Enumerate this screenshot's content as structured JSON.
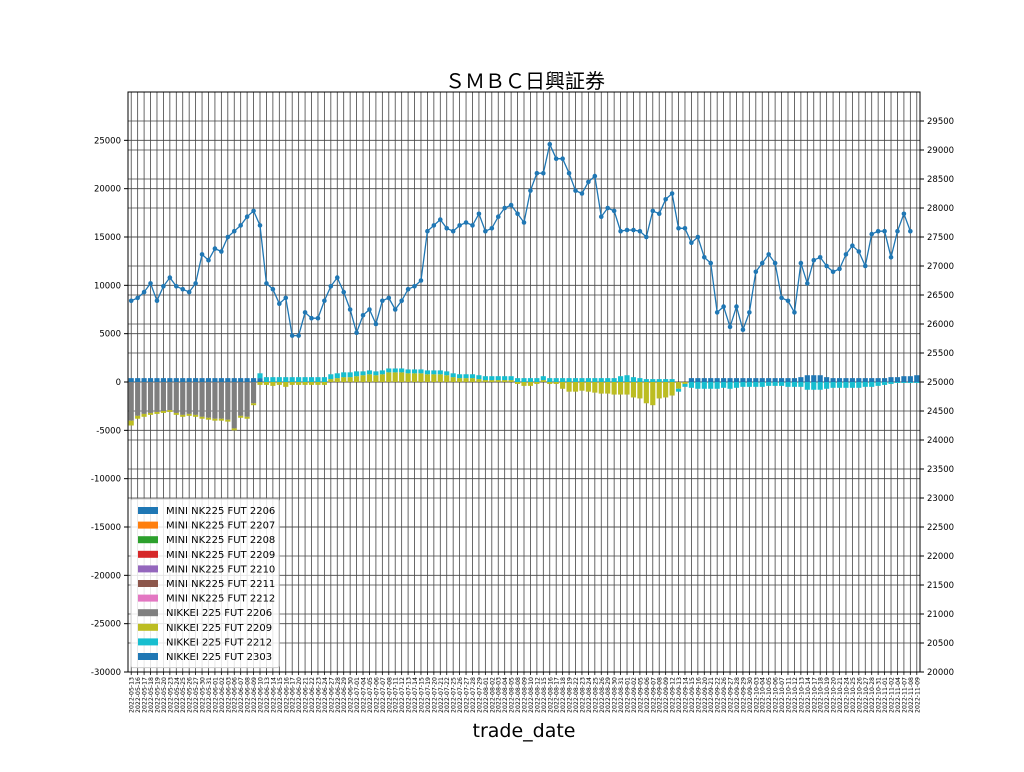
{
  "chart_data": {
    "type": "bar",
    "title": "ＳＭＢＣ日興証券",
    "xlabel": "trade_date",
    "ylabel": "",
    "ylim": [
      -30000,
      30000
    ],
    "y2lim": [
      20000,
      30000
    ],
    "yticks": [
      25000,
      20000,
      15000,
      10000,
      5000,
      0,
      -5000,
      -10000,
      -15000,
      -20000,
      -25000,
      -30000
    ],
    "y2ticks": [
      29500,
      29000,
      28500,
      28000,
      27500,
      27000,
      26500,
      26000,
      25500,
      25000,
      24500,
      24000,
      23500,
      23000,
      22500,
      22000,
      21500,
      21000,
      20500,
      20000
    ],
    "grid": true,
    "legend_placement": "lower-left",
    "x_tick_labels": [
      "2022-05-13",
      "2022-05-16",
      "2022-05-17",
      "2022-05-18",
      "2022-05-19",
      "2022-05-20",
      "2022-05-23",
      "2022-05-24",
      "2022-05-25",
      "2022-05-26",
      "2022-05-27",
      "2022-05-30",
      "2022-05-31",
      "2022-06-01",
      "2022-06-02",
      "2022-06-03",
      "2022-06-06",
      "2022-06-07",
      "2022-06-08",
      "2022-06-09",
      "2022-06-10",
      "2022-06-13",
      "2022-06-14",
      "2022-06-15",
      "2022-06-16",
      "2022-06-17",
      "2022-06-20",
      "2022-06-21",
      "2022-06-22",
      "2022-06-23",
      "2022-06-24",
      "2022-06-27",
      "2022-06-28",
      "2022-06-29",
      "2022-06-30",
      "2022-07-01",
      "2022-07-04",
      "2022-07-05",
      "2022-07-06",
      "2022-07-07",
      "2022-07-08",
      "2022-07-11",
      "2022-07-12",
      "2022-07-13",
      "2022-07-14",
      "2022-07-15",
      "2022-07-19",
      "2022-07-20",
      "2022-07-21",
      "2022-07-22",
      "2022-07-25",
      "2022-07-26",
      "2022-07-27",
      "2022-07-28",
      "2022-07-29",
      "2022-08-01",
      "2022-08-02",
      "2022-08-03",
      "2022-08-04",
      "2022-08-05",
      "2022-08-08",
      "2022-08-09",
      "2022-08-10",
      "2022-08-12",
      "2022-08-15",
      "2022-08-16",
      "2022-08-17",
      "2022-08-18",
      "2022-08-19",
      "2022-08-22",
      "2022-08-23",
      "2022-08-24",
      "2022-08-25",
      "2022-08-26",
      "2022-08-29",
      "2022-08-30",
      "2022-08-31",
      "2022-09-01",
      "2022-09-02",
      "2022-09-05",
      "2022-09-06",
      "2022-09-07",
      "2022-09-08",
      "2022-09-09",
      "2022-09-12",
      "2022-09-13",
      "2022-09-14",
      "2022-09-15",
      "2022-09-16",
      "2022-09-20",
      "2022-09-21",
      "2022-09-22",
      "2022-09-26",
      "2022-09-27",
      "2022-09-28",
      "2022-09-29",
      "2022-09-30",
      "2022-10-03",
      "2022-10-04",
      "2022-10-05",
      "2022-10-06",
      "2022-10-07",
      "2022-10-11",
      "2022-10-12",
      "2022-10-13",
      "2022-10-14",
      "2022-10-17",
      "2022-10-18",
      "2022-10-19",
      "2022-10-20",
      "2022-10-21",
      "2022-10-24",
      "2022-10-25",
      "2022-10-26",
      "2022-10-27",
      "2022-10-28",
      "2022-10-31",
      "2022-11-01",
      "2022-11-02",
      "2022-11-04",
      "2022-11-07",
      "2022-11-08",
      "2022-11-09"
    ],
    "series": [
      {
        "name": "MINI NK225 FUT 2206",
        "color": "#1f77b4"
      },
      {
        "name": "MINI NK225 FUT 2207",
        "color": "#ff7f0e"
      },
      {
        "name": "MINI NK225 FUT 2208",
        "color": "#2ca02c"
      },
      {
        "name": "MINI NK225 FUT 2209",
        "color": "#d62728"
      },
      {
        "name": "MINI NK225 FUT 2210",
        "color": "#9467bd"
      },
      {
        "name": "MINI NK225 FUT 2211",
        "color": "#8c564b"
      },
      {
        "name": "MINI NK225 FUT 2212",
        "color": "#e377c2"
      },
      {
        "name": "NIKKEI 225 FUT 2206",
        "color": "#7f7f7f"
      },
      {
        "name": "NIKKEI 225 FUT 2209",
        "color": "#bcbd22"
      },
      {
        "name": "NIKKEI 225 FUT 2212",
        "color": "#17becf"
      },
      {
        "name": "NIKKEI 225 FUT 2303",
        "color": "#1f77b4"
      }
    ],
    "bar_stacks": [
      {
        "series": "MINI NK225 FUT 2206",
        "values": [
          400,
          400,
          400,
          400,
          400,
          400,
          400,
          400,
          400,
          400,
          400,
          400,
          400,
          400,
          400,
          400,
          400,
          400,
          400,
          400,
          400,
          0,
          0,
          0,
          0,
          0,
          0,
          0,
          0,
          0,
          0,
          0,
          0,
          0,
          0,
          0,
          0,
          0,
          0,
          0,
          0,
          0,
          0,
          0,
          0,
          0,
          0,
          0,
          0,
          0,
          0,
          0,
          0,
          0,
          0,
          0,
          0,
          0,
          0,
          0,
          0,
          0,
          0,
          0,
          0,
          0,
          0,
          0,
          0,
          0,
          0,
          0,
          0,
          0,
          0,
          0,
          0,
          0,
          0,
          0,
          0,
          0,
          0,
          0,
          0,
          0,
          0,
          0,
          0,
          0,
          0,
          0,
          0,
          0,
          0,
          0,
          0,
          0,
          0,
          0,
          0,
          0,
          0,
          0,
          0,
          0,
          0,
          0,
          0,
          0,
          0,
          0,
          0,
          0,
          0,
          0,
          0,
          0,
          0,
          0,
          0
        ]
      },
      {
        "series": "NIKKEI 225 FUT 2206",
        "values": [
          -4000,
          -3500,
          -3300,
          -3200,
          -3100,
          -3000,
          -2900,
          -3200,
          -3400,
          -3300,
          -3400,
          -3600,
          -3700,
          -3800,
          -3800,
          -3900,
          -4800,
          -3500,
          -3600,
          -2200,
          0,
          0,
          0,
          0,
          0,
          0,
          0,
          0,
          0,
          0,
          0,
          0,
          0,
          0,
          0,
          0,
          0,
          0,
          0,
          0,
          0,
          0,
          0,
          0,
          0,
          0,
          0,
          0,
          0,
          0,
          0,
          0,
          0,
          0,
          0,
          0,
          0,
          0,
          0,
          0,
          0,
          0,
          0,
          0,
          0,
          0,
          0,
          0,
          0,
          0,
          0,
          0,
          0,
          0,
          0,
          0,
          0,
          0,
          0,
          0,
          0,
          0,
          0,
          0,
          0,
          0,
          0,
          0,
          0,
          0,
          0,
          0,
          0,
          0,
          0,
          0,
          0,
          0,
          0,
          0,
          0,
          0,
          0,
          0,
          0,
          0,
          0,
          0,
          0,
          0,
          0,
          0,
          0,
          0,
          0,
          0,
          0,
          0,
          0,
          0,
          0,
          0
        ]
      },
      {
        "series": "NIKKEI 225 FUT 2209",
        "values": [
          -500,
          -300,
          -300,
          -200,
          -200,
          -200,
          -200,
          -200,
          -200,
          -200,
          -200,
          -200,
          -200,
          -200,
          -200,
          -200,
          -200,
          -200,
          -200,
          -200,
          -300,
          -300,
          -400,
          -300,
          -500,
          -300,
          -300,
          -300,
          -300,
          -300,
          -300,
          300,
          400,
          500,
          500,
          600,
          700,
          800,
          700,
          800,
          1000,
          1000,
          1000,
          900,
          900,
          900,
          800,
          800,
          800,
          700,
          500,
          400,
          400,
          400,
          300,
          200,
          200,
          200,
          200,
          200,
          -200,
          -400,
          -400,
          -200,
          200,
          -200,
          -200,
          -700,
          -1000,
          -1000,
          -900,
          -1000,
          -1100,
          -1200,
          -1200,
          -1300,
          -1300,
          -1300,
          -1600,
          -1700,
          -2200,
          -2400,
          -1700,
          -1600,
          -1400,
          -700,
          -200,
          0,
          0,
          0,
          0,
          0,
          0,
          0,
          0,
          0,
          0,
          0,
          0,
          0,
          0,
          0,
          0,
          0,
          0,
          0,
          0,
          0,
          0,
          0,
          0,
          0,
          0,
          0,
          0,
          0,
          0,
          0,
          0,
          0,
          0,
          0,
          0,
          0,
          0,
          0,
          0
        ]
      },
      {
        "series": "NIKKEI 225 FUT 2212",
        "values": [
          0,
          0,
          0,
          0,
          0,
          0,
          0,
          0,
          0,
          0,
          0,
          0,
          0,
          0,
          0,
          0,
          0,
          0,
          0,
          0,
          500,
          500,
          500,
          500,
          500,
          500,
          500,
          500,
          500,
          500,
          500,
          500,
          500,
          500,
          500,
          500,
          400,
          400,
          400,
          400,
          400,
          400,
          400,
          400,
          400,
          400,
          400,
          400,
          400,
          400,
          400,
          400,
          400,
          400,
          400,
          400,
          400,
          400,
          400,
          400,
          400,
          400,
          400,
          400,
          400,
          400,
          400,
          400,
          400,
          400,
          400,
          400,
          400,
          400,
          400,
          400,
          600,
          700,
          500,
          400,
          300,
          300,
          300,
          300,
          300,
          -300,
          -300,
          -600,
          -700,
          -700,
          -700,
          -700,
          -600,
          -700,
          -600,
          -500,
          -500,
          -500,
          -500,
          -400,
          -400,
          -400,
          -500,
          -500,
          -500,
          -800,
          -800,
          -800,
          -700,
          -600,
          -600,
          -600,
          -600,
          -600,
          -500,
          -500,
          -400,
          -300,
          -200,
          -100,
          -100,
          -100,
          -100,
          -100
        ]
      },
      {
        "series": "NIKKEI 225 FUT 2303",
        "values": [
          0,
          0,
          0,
          0,
          0,
          0,
          0,
          0,
          0,
          0,
          0,
          0,
          0,
          0,
          0,
          0,
          0,
          0,
          0,
          0,
          0,
          0,
          0,
          0,
          0,
          0,
          0,
          0,
          0,
          0,
          0,
          0,
          0,
          0,
          0,
          0,
          0,
          0,
          0,
          0,
          0,
          0,
          0,
          0,
          0,
          0,
          0,
          0,
          0,
          0,
          0,
          0,
          0,
          0,
          0,
          0,
          0,
          0,
          0,
          0,
          0,
          0,
          0,
          0,
          0,
          0,
          0,
          0,
          0,
          0,
          0,
          0,
          0,
          0,
          0,
          0,
          0,
          0,
          0,
          0,
          0,
          0,
          0,
          0,
          0,
          0,
          0,
          400,
          400,
          400,
          400,
          400,
          400,
          400,
          400,
          400,
          400,
          400,
          400,
          400,
          400,
          400,
          400,
          400,
          500,
          700,
          700,
          700,
          500,
          400,
          400,
          400,
          400,
          400,
          400,
          400,
          400,
          400,
          500,
          500,
          600,
          600,
          700,
          700,
          800,
          800,
          800
        ]
      }
    ],
    "line": {
      "values": [
        26400,
        26450,
        26550,
        26700,
        26400,
        26650,
        26800,
        26650,
        26600,
        26550,
        26700,
        27200,
        27100,
        27300,
        27250,
        27500,
        27600,
        27700,
        27850,
        27950,
        27700,
        26700,
        26600,
        26350,
        26450,
        25800,
        25800,
        26200,
        26100,
        26100,
        26400,
        26650,
        26800,
        26550,
        26250,
        25850,
        26150,
        26250,
        26000,
        26400,
        26450,
        26250,
        26400,
        26600,
        26650,
        26750,
        27600,
        27700,
        27800,
        27650,
        27600,
        27700,
        27750,
        27700,
        27900,
        27600,
        27650,
        27850,
        28000,
        28050,
        27900,
        27750,
        28300,
        28600,
        28600,
        29100,
        28850,
        28850,
        28600,
        28300,
        28250,
        28450,
        28550,
        27850,
        28000,
        27950,
        27600,
        27620,
        27620,
        27600,
        27500,
        27950,
        27900,
        28150,
        28250,
        27650,
        27650,
        27400,
        27500,
        27150,
        27050,
        26200,
        26300,
        25950,
        26300,
        25900,
        26200,
        26900,
        27050,
        27200,
        27050,
        26450,
        26400,
        26200,
        27050,
        26700,
        27100,
        27150,
        27000,
        26900,
        26950,
        27200,
        27350,
        27250,
        27000,
        27550,
        27600,
        27600,
        27150,
        27600,
        27900,
        27600
      ]
    }
  }
}
